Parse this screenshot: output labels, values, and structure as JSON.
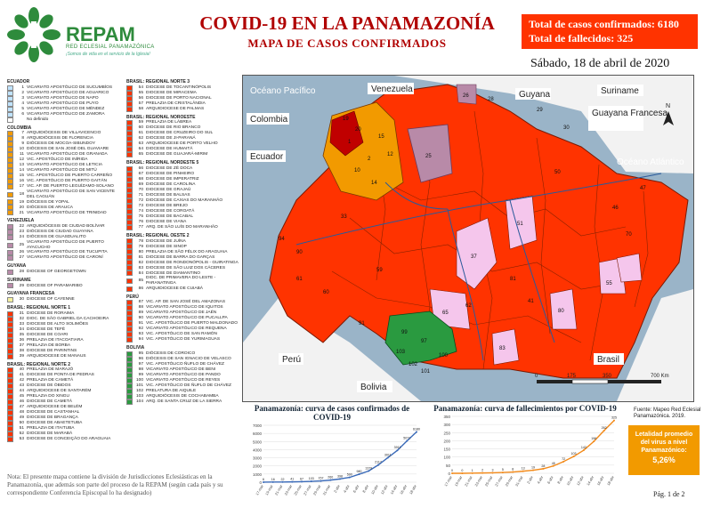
{
  "header": {
    "logo_text": "REPAM",
    "logo_sub": "RED ECLESIAL PANAMAZÓNICA",
    "logo_tag": "¡Somos de vida en el servicio de la Iglesia!",
    "title": "COVID-19 EN LA PANAMAZONÍA",
    "subtitle": "MAPA DE CASOS CONFIRMADOS",
    "total_cases": "Total de casos confirmados: 6180",
    "total_deaths": "Total de fallecidos: 325",
    "date": "Sábado, 18 de abril de 2020"
  },
  "colors": {
    "brand_green": "#2e8b3c",
    "title_red": "#b00000",
    "totals_bg": "#ff3300",
    "high": "#ff3300",
    "dark_red": "#c00000",
    "orange": "#f29a00",
    "pink": "#f5c6ec",
    "mauve": "#b88aa8",
    "green": "#2a9a40",
    "ocean": "#9ab4c8",
    "land": "#f2f2f2"
  },
  "legend": {
    "col1": [
      {
        "head": "ECUADOR"
      },
      {
        "n": "1",
        "t": "VICARIATO APOSTÓLICO DE SUCUMBÍOS",
        "c": "#bfe3ff"
      },
      {
        "n": "2",
        "t": "VICARIATO APOSTÓLICO DE AGUARICO",
        "c": "#bfe3ff"
      },
      {
        "n": "3",
        "t": "VICARIATO APOSTÓLICO DE NAPO",
        "c": "#bfe3ff"
      },
      {
        "n": "4",
        "t": "VICARIATO APOSTÓLICO DE PUYO",
        "c": "#bfe3ff"
      },
      {
        "n": "5",
        "t": "VICARIATO APOSTÓLICO DE MÉNDEZ",
        "c": "#bfe3ff"
      },
      {
        "n": "6",
        "t": "VICARIATO APOSTÓLICO DE ZAMORA",
        "c": "#bfe3ff"
      },
      {
        "n": "",
        "t": "No definido",
        "c": "#ffffff"
      },
      {
        "head": "COLOMBIA"
      },
      {
        "n": "7",
        "t": "ARQUIDIÓCESIS DE VILLAVICENCIO",
        "c": "#f29a00"
      },
      {
        "n": "8",
        "t": "ARQUIDIÓCESIS DE FLORENCIA",
        "c": "#f29a00"
      },
      {
        "n": "9",
        "t": "DIÓCESIS DE MOCOA-SIBUNDOY",
        "c": "#f29a00"
      },
      {
        "n": "10",
        "t": "DIÓCESIS DE SAN JOSÉ DEL GUAVIARE",
        "c": "#f29a00"
      },
      {
        "n": "11",
        "t": "VICARIATO APOSTÓLICO DE GRANADA",
        "c": "#f29a00"
      },
      {
        "n": "12",
        "t": "VIC. APOSTÓLICO DE INÍRIDA",
        "c": "#f29a00"
      },
      {
        "n": "13",
        "t": "VICARIATO APOSTÓLICO DE LETICIA",
        "c": "#f29a00"
      },
      {
        "n": "14",
        "t": "VICARIATO APOSTÓLICO DE MITÚ",
        "c": "#f29a00"
      },
      {
        "n": "15",
        "t": "VIC. APOSTÓLICO DE PUERTO CARREÑO",
        "c": "#f29a00"
      },
      {
        "n": "16",
        "t": "VIC. APOSTÓLICO DE PUERTO GAITÁN",
        "c": "#f29a00"
      },
      {
        "n": "17",
        "t": "VIC. AP. DE PUERTO LEGUÍZAMO-SOLANO",
        "c": "#f29a00"
      },
      {
        "n": "18",
        "t": "VICARIATO APOSTÓLICO DE SAN VICENTE DEL CAGUÁN",
        "c": "#f29a00"
      },
      {
        "n": "19",
        "t": "DIÓCESIS DE YOPAL",
        "c": "#f29a00"
      },
      {
        "n": "20",
        "t": "DIÓCESIS DE ARAUCA",
        "c": "#f29a00"
      },
      {
        "n": "21",
        "t": "VICARIATO APOSTÓLICO DE TRINIDAD",
        "c": "#f29a00"
      },
      {
        "head": "VENEZUELA"
      },
      {
        "n": "22",
        "t": "ARQUIDIÓCESIS DE CIUDAD BOLÍVAR",
        "c": "#b88aa8"
      },
      {
        "n": "23",
        "t": "DIÓCESIS DE CIUDAD GUAYANA",
        "c": "#b88aa8"
      },
      {
        "n": "24",
        "t": "DIÓCESIS DE GUASDUALITO",
        "c": "#b88aa8"
      },
      {
        "n": "25",
        "t": "VICARIATO APOSTÓLICO DE PUERTO AYACUCHO",
        "c": "#b88aa8"
      },
      {
        "n": "26",
        "t": "VICARIATO APOSTÓLICO DE TUCUPITA",
        "c": "#b88aa8"
      },
      {
        "n": "27",
        "t": "VICARIATO APOSTÓLICO DE CARONÍ",
        "c": "#b88aa8"
      },
      {
        "head": "GUYANA"
      },
      {
        "n": "28",
        "t": "DIOCESE OF GEORGETOWN",
        "c": "#b88aa8"
      },
      {
        "head": "SURINAME"
      },
      {
        "n": "29",
        "t": "DIOCESE OF PARAMARIBO",
        "c": "#b88aa8"
      },
      {
        "head": "GUAYANA FRANCESA"
      },
      {
        "n": "30",
        "t": "DIOCESE OF CAYENNE",
        "c": "#f5f0a0"
      },
      {
        "head": "BRASIL: REGIONAL NORTE 1"
      },
      {
        "n": "31",
        "t": "DIOCESE DE RORAIMA",
        "c": "#ff3300"
      },
      {
        "n": "32",
        "t": "DIOC. DE SÃO GABRIEL DA CACHOEIRA",
        "c": "#ff3300"
      },
      {
        "n": "33",
        "t": "DIOCESE DE ALTO SOLIMÕES",
        "c": "#ff3300"
      },
      {
        "n": "34",
        "t": "DIOCESE DE TEFÉ",
        "c": "#ff3300"
      },
      {
        "n": "35",
        "t": "DIOCESE DE COARI",
        "c": "#ff3300"
      },
      {
        "n": "36",
        "t": "PRELAZIA DE ITACOATIARA",
        "c": "#ff3300"
      },
      {
        "n": "37",
        "t": "PRELAZIA DE BORBA",
        "c": "#ff3300"
      },
      {
        "n": "38",
        "t": "DIOCESE DE PARINTINS",
        "c": "#ff3300"
      },
      {
        "n": "39",
        "t": "ARQUIDIOCESE DE MANAUS",
        "c": "#ff3300"
      },
      {
        "head": "BRASIL: REGIONAL NORTE 2"
      },
      {
        "n": "40",
        "t": "PRELAZIA DE MARAJÓ",
        "c": "#ff3300"
      },
      {
        "n": "41",
        "t": "DIOCESE DE PONTA DE PEDRAS",
        "c": "#ff3300"
      },
      {
        "n": "42",
        "t": "PRELAZIA DE CAMETÁ",
        "c": "#ff3300"
      },
      {
        "n": "43",
        "t": "DIOCESE DE ÓBIDOS",
        "c": "#ff3300"
      },
      {
        "n": "44",
        "t": "ARQUIDIOCESE DE SANTARÉM",
        "c": "#ff3300"
      },
      {
        "n": "45",
        "t": "PRELAZIA DO XINGU",
        "c": "#ff3300"
      },
      {
        "n": "46",
        "t": "DIOCESE DE CAMETÁ",
        "c": "#ff3300"
      },
      {
        "n": "47",
        "t": "ARQUIDIOCESE DE BELÉM",
        "c": "#ff3300"
      },
      {
        "n": "48",
        "t": "DIOCESE DE CASTANHAL",
        "c": "#ff3300"
      },
      {
        "n": "49",
        "t": "DIOCESE DE BRAGANÇA",
        "c": "#ff3300"
      },
      {
        "n": "50",
        "t": "DIOCESE DE ABAETETUBA",
        "c": "#ff3300"
      },
      {
        "n": "51",
        "t": "PRELAZIA DE ITAITUBA",
        "c": "#ff3300"
      },
      {
        "n": "52",
        "t": "DIOCESE DE MARABÁ",
        "c": "#ff3300"
      },
      {
        "n": "53",
        "t": "DIOCESE DE CONCEIÇÃO DO ARAGUAIA",
        "c": "#ff3300"
      }
    ],
    "col2": [
      {
        "head": "BRASIL: REGIONAL NORTE 3"
      },
      {
        "n": "54",
        "t": "DIOCESE DE TOCANTINÓPOLIS",
        "c": "#ff3300"
      },
      {
        "n": "55",
        "t": "DIOCESE DE MIRACEMA",
        "c": "#ff3300"
      },
      {
        "n": "56",
        "t": "DIOCESE DE PORTO NACIONAL",
        "c": "#ff3300"
      },
      {
        "n": "57",
        "t": "PRELAZIA DE CRISTALÂNDIA",
        "c": "#ff3300"
      },
      {
        "n": "58",
        "t": "ARQUIDIOCESE DE PALMAS",
        "c": "#ff3300"
      },
      {
        "head": "BRASIL: REGIONAL NOROESTE"
      },
      {
        "n": "59",
        "t": "PRELAZIA DE LÁBREA",
        "c": "#ff3300"
      },
      {
        "n": "60",
        "t": "DIOCESE DE RIO BRANCO",
        "c": "#ff3300"
      },
      {
        "n": "61",
        "t": "DIOCESE DE CRUZEIRO DO SUL",
        "c": "#ff3300"
      },
      {
        "n": "62",
        "t": "DIOCESE DE JI-PARANÁ",
        "c": "#ff3300"
      },
      {
        "n": "63",
        "t": "ARQUIDIOCESE DE PORTO VELHO",
        "c": "#ff3300"
      },
      {
        "n": "64",
        "t": "DIOCESE DE HUMAITÁ",
        "c": "#ff3300"
      },
      {
        "n": "65",
        "t": "DIOCESE DE GUAJARÁ-MIRIM",
        "c": "#ff3300"
      },
      {
        "head": "BRASIL: REGIONAL NORDESTE 5"
      },
      {
        "n": "66",
        "t": "DIOCESE DE ZÉ DOCA",
        "c": "#ff3300"
      },
      {
        "n": "67",
        "t": "DIOCESE DE PINHEIRO",
        "c": "#ff3300"
      },
      {
        "n": "68",
        "t": "DIOCESE DE IMPERATRIZ",
        "c": "#ff3300"
      },
      {
        "n": "69",
        "t": "DIOCESE DE CAROLINA",
        "c": "#ff3300"
      },
      {
        "n": "70",
        "t": "DIOCESE DE GRAJAÚ",
        "c": "#ff3300"
      },
      {
        "n": "71",
        "t": "DIOCESE DE BALSAS",
        "c": "#ff3300"
      },
      {
        "n": "72",
        "t": "DIOCESE DE CAXIAS DO MARANHÃO",
        "c": "#ff3300"
      },
      {
        "n": "73",
        "t": "DIOCESE DE BREJO",
        "c": "#ff3300"
      },
      {
        "n": "74",
        "t": "DIOCESE DE COROATÁ",
        "c": "#ff3300"
      },
      {
        "n": "75",
        "t": "DIOCESE DE BACABAL",
        "c": "#ff3300"
      },
      {
        "n": "76",
        "t": "DIOCESE DE VIANA",
        "c": "#ff3300"
      },
      {
        "n": "77",
        "t": "ARQ. DE SÃO LUÍS DO MARANHÃO",
        "c": "#ff3300"
      },
      {
        "head": "BRASIL: REGIONAL OESTE 2"
      },
      {
        "n": "78",
        "t": "DIOCESE DE JUÍNA",
        "c": "#ff3300"
      },
      {
        "n": "79",
        "t": "DIOCESE DE SINOP",
        "c": "#ff3300"
      },
      {
        "n": "80",
        "t": "PRELAZIA DE SÃO FÉLIX DO ARAGUAIA",
        "c": "#ff3300"
      },
      {
        "n": "81",
        "t": "DIOCESE DE BARRA DO GARÇAS",
        "c": "#ff3300"
      },
      {
        "n": "82",
        "t": "DIOCESE DE RONDONÓPOLIS - GUIRATINGA",
        "c": "#ff3300"
      },
      {
        "n": "83",
        "t": "DIOCESE DE SÃO LUIZ DOS CÁCERES",
        "c": "#ff3300"
      },
      {
        "n": "84",
        "t": "DIOCESE DE DIAMANTINO",
        "c": "#ff3300"
      },
      {
        "n": "85",
        "t": "DIOC. DE PRIMAVERA DO LESTE - PARANATINGA",
        "c": "#ff3300"
      },
      {
        "n": "86",
        "t": "ARQUIDIOCESE DE CUIABÁ",
        "c": "#ff3300"
      },
      {
        "head": "PERÚ"
      },
      {
        "n": "87",
        "t": "VIC. AP. DE SAN JOSÉ DEL AMAZONAS",
        "c": "#ff3300"
      },
      {
        "n": "88",
        "t": "VICARIATO APOSTÓLICO DE IQUITOS",
        "c": "#ff3300"
      },
      {
        "n": "89",
        "t": "VICARIATO APOSTÓLICO DE JAÉN",
        "c": "#ff3300"
      },
      {
        "n": "90",
        "t": "VICARIATO APOSTÓLICO DE PUCALLPA",
        "c": "#ff3300"
      },
      {
        "n": "91",
        "t": "VIC. APOSTÓLICO DE PUERTO MALDONADO",
        "c": "#ff3300"
      },
      {
        "n": "92",
        "t": "VICARIATO APOSTÓLICO DE REQUENA",
        "c": "#ff3300"
      },
      {
        "n": "93",
        "t": "VIC. APOSTÓLICO DE SAN RAMÓN",
        "c": "#ff3300"
      },
      {
        "n": "94",
        "t": "VIC. APOSTÓLICO DE YURIMAGUAS",
        "c": "#ff3300"
      },
      {
        "head": "BOLIVIA"
      },
      {
        "n": "95",
        "t": "DIÓCESIS DE COROICO",
        "c": "#2a9a40"
      },
      {
        "n": "96",
        "t": "DIÓCESIS DE SAN IGNACIO DE VELASCO",
        "c": "#2a9a40"
      },
      {
        "n": "97",
        "t": "VIC. APOSTÓLICO ÑUFLO DE CHÁVEZ",
        "c": "#2a9a40"
      },
      {
        "n": "98",
        "t": "VICARIATO APOSTÓLICO DE BENI",
        "c": "#2a9a40"
      },
      {
        "n": "99",
        "t": "VICARIATO APOSTÓLICO DE PANDO",
        "c": "#2a9a40"
      },
      {
        "n": "100",
        "t": "VICARIATO APOSTÓLICO DE REYES",
        "c": "#2a9a40"
      },
      {
        "n": "101",
        "t": "VIC. APOSTÓLICO DE ÑUFLO DE CHÁVEZ",
        "c": "#2a9a40"
      },
      {
        "n": "102",
        "t": "PRELATURA DE AIQUILE",
        "c": "#2a9a40"
      },
      {
        "n": "103",
        "t": "ARQUIDIÓCESIS DE COCHABAMBA",
        "c": "#2a9a40"
      },
      {
        "n": "104",
        "t": "ARQ. DE SANTA CRUZ DE LA SIERRA",
        "c": "#2a9a40"
      }
    ]
  },
  "note": "Nota: El presente mapa contiene la división de Jurisdicciones Eclesiásticas en la Panamazonía, que además son parte del proceso de la REPAM (según cada país y su correspondiente Conferencia Episcopal lo ha designado)",
  "map": {
    "labels": {
      "pacific": "Océano Pacífico",
      "atlantic": "Océano Atlántico",
      "venezuela": "Venezuela",
      "guyana": "Guyana",
      "suriname": "Suriname",
      "guyana_fr": "Guayana Francesa",
      "colombia": "Colombia",
      "ecuador": "Ecuador",
      "peru": "Perú",
      "bolivia": "Bolivia",
      "brasil": "Brasil"
    },
    "scale": [
      "0",
      "175",
      "350",
      "700 Km"
    ],
    "region_numbers": [
      "1",
      "2",
      "10",
      "12",
      "14",
      "15",
      "19",
      "20",
      "25",
      "26",
      "28",
      "29",
      "30",
      "33",
      "37",
      "41",
      "46",
      "47",
      "50",
      "51",
      "55",
      "59",
      "60",
      "61",
      "62",
      "65",
      "70",
      "80",
      "81",
      "83",
      "90",
      "91",
      "94",
      "97",
      "99",
      "100",
      "101",
      "102",
      "103"
    ]
  },
  "source": "Fuente: Mapeo Red Eclesial Panamazónica. 2019.",
  "side_box": {
    "line1": "Letalidad promedio",
    "line2": "del virus a nivel",
    "line3": "Panamazónico:",
    "value": "5,26%"
  },
  "page": "Pág. 1 de 2",
  "chart_data": [
    {
      "type": "line",
      "title": "Panamazonía: curva de casos confirmados de COVID-19",
      "x": [
        "17-mar",
        "19-mar",
        "21-mar",
        "23-mar",
        "25-mar",
        "27-mar",
        "29-mar",
        "31-mar",
        "2-abr",
        "4-abr",
        "6-abr",
        "8-abr",
        "10-abr",
        "12-abr",
        "14-abr",
        "16-abr",
        "18-abr"
      ],
      "values": [
        6,
        16,
        22,
        41,
        67,
        103,
        157,
        260,
        398,
        590,
        980,
        1379,
        2117,
        3011,
        3911,
        5071,
        6180
      ],
      "ylim": [
        0,
        7000
      ],
      "yticks": [
        "0",
        "1000",
        "2000",
        "3000",
        "4000",
        "5000",
        "6000",
        "7000"
      ],
      "color": "#3a6ab8"
    },
    {
      "type": "line",
      "title": "Panamazonía: curva de fallecimientos por COVID-19",
      "x": [
        "17-mar",
        "19-mar",
        "21-mar",
        "23-mar",
        "25-mar",
        "27-mar",
        "29-mar",
        "31-mar",
        "2-abr",
        "4-abr",
        "6-abr",
        "8-abr",
        "10-abr",
        "12-abr",
        "14-abr",
        "16-abr",
        "18-abr"
      ],
      "values": [
        0,
        0,
        1,
        2,
        3,
        5,
        8,
        13,
        19,
        28,
        45,
        72,
        103,
        142,
        196,
        262,
        325
      ],
      "ylim": [
        0,
        350
      ],
      "yticks": [
        "0",
        "50",
        "100",
        "150",
        "200",
        "250",
        "300",
        "350"
      ],
      "color": "#f28a1a"
    }
  ]
}
